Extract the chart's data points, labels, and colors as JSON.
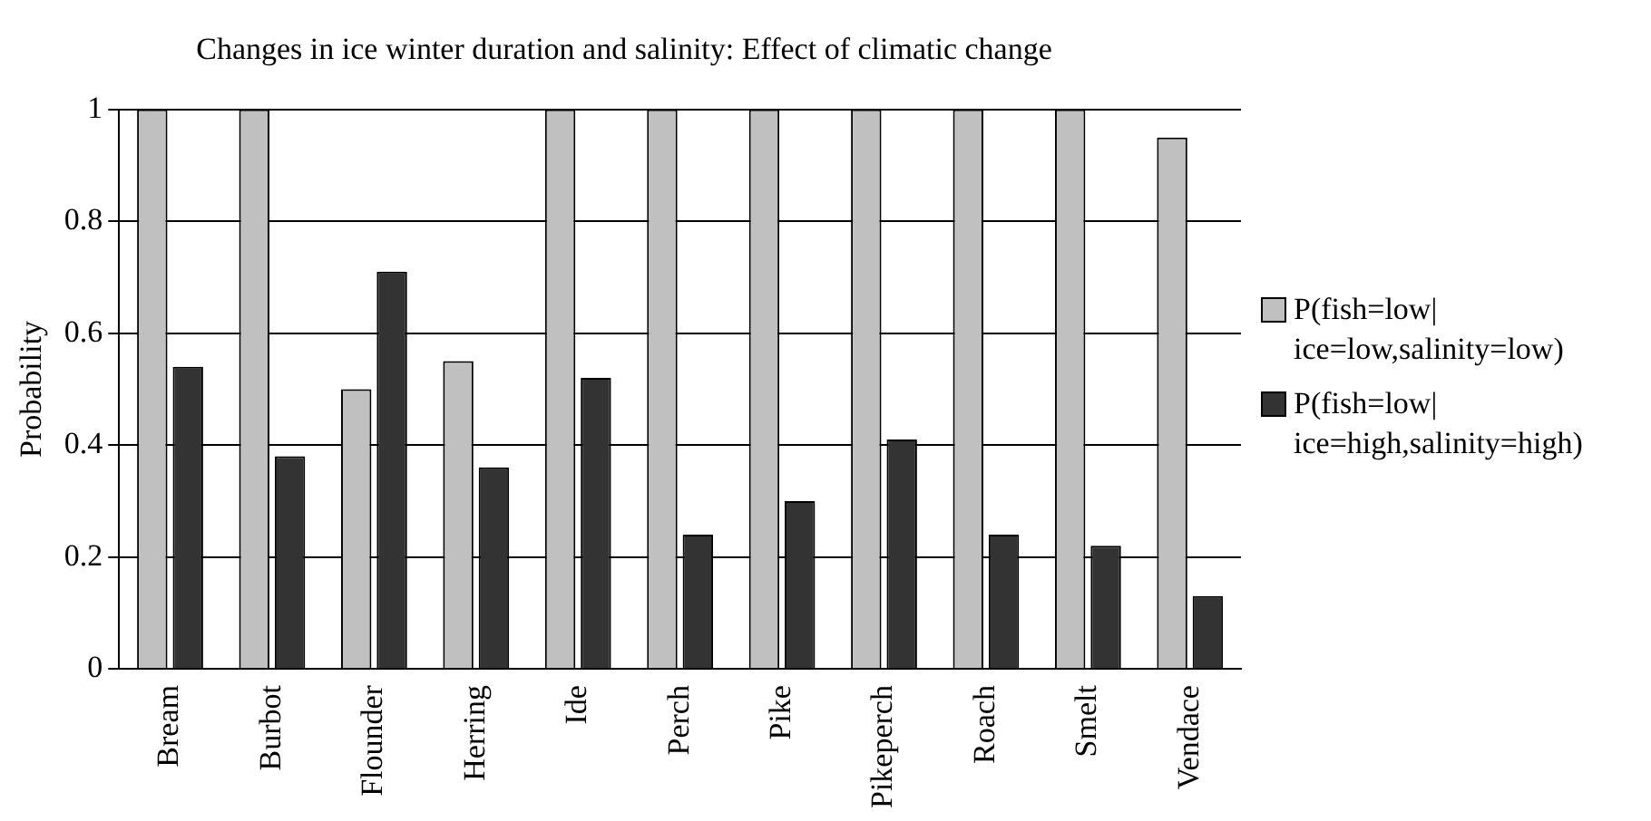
{
  "chart_data": {
    "type": "bar",
    "title": "Changes in ice winter duration and salinity: Effect of climatic change",
    "ylabel": "Probability",
    "categories": [
      "Bream",
      "Burbot",
      "Flounder",
      "Herring",
      "Ide",
      "Perch",
      "Pike",
      "Pikeperch",
      "Roach",
      "Smelt",
      "Vendace"
    ],
    "series": [
      {
        "name": "P(fish=low|ice=low,salinity=low)",
        "color": "#c0c0c0",
        "values": [
          1,
          1,
          0.5,
          0.55,
          1,
          1,
          1,
          1,
          1,
          1,
          0.95
        ]
      },
      {
        "name": "P(fish=low|ice=high,salinity=high)",
        "color": "#333333",
        "values": [
          0.54,
          0.38,
          0.71,
          0.36,
          0.52,
          0.24,
          0.3,
          0.41,
          0.24,
          0.22,
          0.13
        ]
      }
    ],
    "ylim": [
      0,
      1
    ],
    "yticks": [
      0,
      0.2,
      0.4,
      0.6,
      0.8,
      1
    ],
    "grid": "y",
    "legend": "right"
  }
}
